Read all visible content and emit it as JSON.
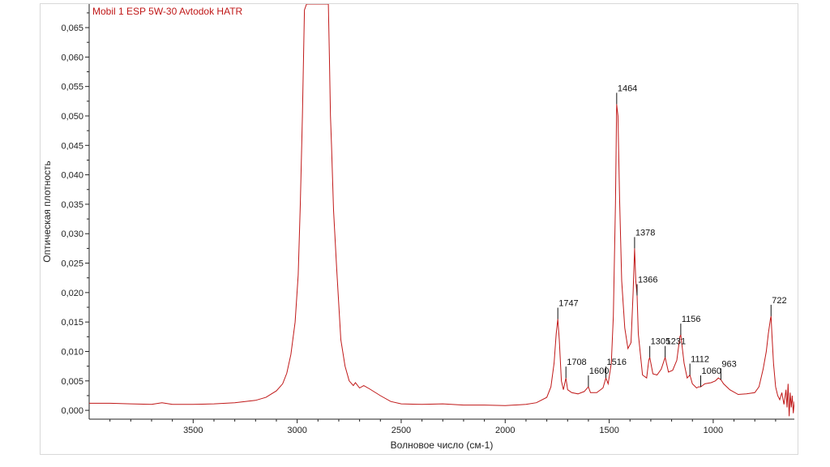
{
  "chart_data": {
    "type": "line",
    "title": "Mobil 1 ESP 5W-30 Avtodok HATR",
    "xlabel": "Волновое число (см-1)",
    "ylabel": "Оптическая плотность",
    "x_reversed": true,
    "xlim": [
      4000,
      610
    ],
    "ylim": [
      -0.0015,
      0.069
    ],
    "x_ticks": [
      "3500",
      "3000",
      "2500",
      "2000",
      "1500",
      "1000"
    ],
    "x_tick_values": [
      3500,
      3000,
      2500,
      2000,
      1500,
      1000
    ],
    "y_ticks": [
      "0,000",
      "0,005",
      "0,010",
      "0,015",
      "0,020",
      "0,025",
      "0,030",
      "0,035",
      "0,040",
      "0,045",
      "0,050",
      "0,055",
      "0,060",
      "0,065"
    ],
    "y_tick_values": [
      0.0,
      0.005,
      0.01,
      0.015,
      0.02,
      0.025,
      0.03,
      0.035,
      0.04,
      0.045,
      0.05,
      0.055,
      0.06,
      0.065
    ],
    "line_color": "#c01818",
    "grid": false,
    "series": [
      {
        "points": [
          [
            4000,
            0.0012
          ],
          [
            3900,
            0.0012
          ],
          [
            3800,
            0.0011
          ],
          [
            3700,
            0.001
          ],
          [
            3650,
            0.0013
          ],
          [
            3600,
            0.001
          ],
          [
            3500,
            0.001
          ],
          [
            3400,
            0.0011
          ],
          [
            3300,
            0.0013
          ],
          [
            3200,
            0.0017
          ],
          [
            3150,
            0.0022
          ],
          [
            3100,
            0.0033
          ],
          [
            3070,
            0.0045
          ],
          [
            3050,
            0.0063
          ],
          [
            3030,
            0.0095
          ],
          [
            3010,
            0.015
          ],
          [
            2995,
            0.023
          ],
          [
            2985,
            0.035
          ],
          [
            2975,
            0.05
          ],
          [
            2965,
            0.068
          ],
          [
            2955,
            0.069
          ],
          [
            2850,
            0.069
          ],
          [
            2845,
            0.06
          ],
          [
            2840,
            0.05
          ],
          [
            2835,
            0.045
          ],
          [
            2825,
            0.034
          ],
          [
            2810,
            0.024
          ],
          [
            2790,
            0.012
          ],
          [
            2770,
            0.0075
          ],
          [
            2750,
            0.005
          ],
          [
            2730,
            0.0042
          ],
          [
            2720,
            0.0047
          ],
          [
            2700,
            0.0038
          ],
          [
            2680,
            0.0042
          ],
          [
            2650,
            0.0036
          ],
          [
            2600,
            0.0025
          ],
          [
            2550,
            0.0015
          ],
          [
            2500,
            0.0011
          ],
          [
            2400,
            0.001
          ],
          [
            2300,
            0.0011
          ],
          [
            2200,
            0.0009
          ],
          [
            2100,
            0.0009
          ],
          [
            2000,
            0.0008
          ],
          [
            1900,
            0.001
          ],
          [
            1850,
            0.0013
          ],
          [
            1800,
            0.0022
          ],
          [
            1780,
            0.004
          ],
          [
            1765,
            0.008
          ],
          [
            1755,
            0.013
          ],
          [
            1747,
            0.0155
          ],
          [
            1740,
            0.012
          ],
          [
            1730,
            0.005
          ],
          [
            1720,
            0.0035
          ],
          [
            1708,
            0.0055
          ],
          [
            1700,
            0.0035
          ],
          [
            1680,
            0.003
          ],
          [
            1650,
            0.0028
          ],
          [
            1620,
            0.0032
          ],
          [
            1600,
            0.004
          ],
          [
            1590,
            0.003
          ],
          [
            1560,
            0.003
          ],
          [
            1530,
            0.0038
          ],
          [
            1516,
            0.0055
          ],
          [
            1505,
            0.0045
          ],
          [
            1490,
            0.008
          ],
          [
            1480,
            0.016
          ],
          [
            1470,
            0.035
          ],
          [
            1464,
            0.052
          ],
          [
            1458,
            0.05
          ],
          [
            1450,
            0.036
          ],
          [
            1440,
            0.022
          ],
          [
            1425,
            0.014
          ],
          [
            1410,
            0.0105
          ],
          [
            1395,
            0.0115
          ],
          [
            1385,
            0.02
          ],
          [
            1378,
            0.0275
          ],
          [
            1372,
            0.022
          ],
          [
            1366,
            0.0195
          ],
          [
            1360,
            0.013
          ],
          [
            1340,
            0.006
          ],
          [
            1320,
            0.0055
          ],
          [
            1310,
            0.0085
          ],
          [
            1305,
            0.009
          ],
          [
            1290,
            0.0062
          ],
          [
            1270,
            0.006
          ],
          [
            1250,
            0.007
          ],
          [
            1231,
            0.009
          ],
          [
            1215,
            0.0065
          ],
          [
            1195,
            0.0068
          ],
          [
            1175,
            0.0085
          ],
          [
            1160,
            0.0125
          ],
          [
            1156,
            0.0128
          ],
          [
            1140,
            0.008
          ],
          [
            1125,
            0.0055
          ],
          [
            1112,
            0.006
          ],
          [
            1100,
            0.0045
          ],
          [
            1080,
            0.0038
          ],
          [
            1070,
            0.004
          ],
          [
            1060,
            0.004
          ],
          [
            1040,
            0.0045
          ],
          [
            1010,
            0.0047
          ],
          [
            990,
            0.005
          ],
          [
            975,
            0.0055
          ],
          [
            963,
            0.0052
          ],
          [
            950,
            0.0045
          ],
          [
            920,
            0.0035
          ],
          [
            880,
            0.0027
          ],
          [
            840,
            0.0028
          ],
          [
            800,
            0.003
          ],
          [
            780,
            0.004
          ],
          [
            760,
            0.007
          ],
          [
            745,
            0.01
          ],
          [
            735,
            0.013
          ],
          [
            725,
            0.0155
          ],
          [
            722,
            0.016
          ],
          [
            718,
            0.013
          ],
          [
            710,
            0.008
          ],
          [
            700,
            0.004
          ],
          [
            690,
            0.0025
          ],
          [
            680,
            0.0018
          ],
          [
            670,
            0.003
          ],
          [
            660,
            0.001
          ],
          [
            650,
            0.0035
          ],
          [
            645,
            0.0005
          ],
          [
            640,
            0.0045
          ],
          [
            635,
            -0.001
          ],
          [
            630,
            0.003
          ],
          [
            625,
            0.0005
          ],
          [
            620,
            0.0025
          ],
          [
            615,
            -0.0005
          ],
          [
            610,
            0.0015
          ]
        ]
      }
    ],
    "peaks": [
      {
        "label": "1747",
        "x": 1747,
        "y": 0.0155
      },
      {
        "label": "1708",
        "x": 1708,
        "y": 0.0055
      },
      {
        "label": "1600",
        "x": 1600,
        "y": 0.004
      },
      {
        "label": "1516",
        "x": 1516,
        "y": 0.0055
      },
      {
        "label": "1464",
        "x": 1464,
        "y": 0.052
      },
      {
        "label": "1378",
        "x": 1378,
        "y": 0.0275
      },
      {
        "label": "1366",
        "x": 1366,
        "y": 0.0195
      },
      {
        "label": "1305",
        "x": 1305,
        "y": 0.009
      },
      {
        "label": "1231",
        "x": 1231,
        "y": 0.009
      },
      {
        "label": "1156",
        "x": 1156,
        "y": 0.0128
      },
      {
        "label": "1112",
        "x": 1112,
        "y": 0.006
      },
      {
        "label": "1060",
        "x": 1060,
        "y": 0.004
      },
      {
        "label": "963",
        "x": 963,
        "y": 0.0052
      },
      {
        "label": "722",
        "x": 722,
        "y": 0.016
      }
    ]
  }
}
